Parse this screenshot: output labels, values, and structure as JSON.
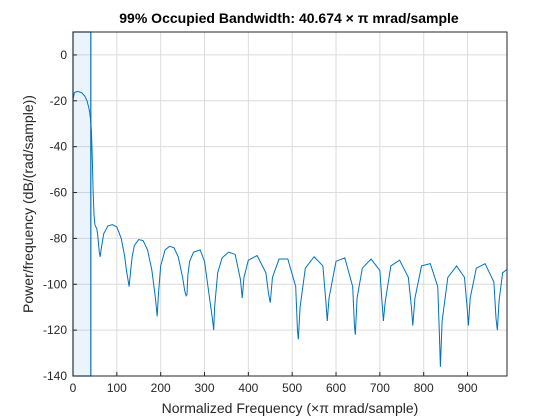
{
  "chart_data": {
    "type": "line",
    "title": "99% Occupied Bandwidth: 40.674 × π mrad/sample",
    "xlabel": "Normalized Frequency  (×π mrad/sample)",
    "ylabel": "Power/frequency (dB/(rad/sample))",
    "xlim": [
      0,
      990
    ],
    "ylim": [
      -140,
      10
    ],
    "xticks": [
      0,
      100,
      200,
      300,
      400,
      500,
      600,
      700,
      800,
      900
    ],
    "yticks": [
      0,
      -20,
      -40,
      -60,
      -80,
      -100,
      -120,
      -140
    ],
    "grid": true,
    "occupied_band": {
      "start": 0,
      "end": 40.674
    },
    "colors": {
      "line": "#0072bd",
      "band_fill": "#0072bd"
    },
    "series": [
      {
        "x": [
          0,
          3,
          8,
          13,
          20,
          27,
          32,
          36,
          38,
          40,
          42,
          44,
          46,
          48,
          50,
          52,
          54,
          56,
          58,
          60,
          62,
          64,
          70,
          80,
          90,
          100,
          110,
          118,
          122,
          128,
          131,
          135,
          140,
          150,
          160,
          170,
          180,
          188,
          192,
          195,
          200,
          210,
          220,
          230,
          240,
          250,
          255,
          258,
          260,
          262,
          266,
          275,
          290,
          300,
          310,
          318,
          321,
          323,
          330,
          340,
          355,
          370,
          382,
          386,
          390,
          400,
          420,
          440,
          446,
          450,
          455,
          470,
          490,
          508,
          512,
          514,
          518,
          530,
          550,
          570,
          577,
          580,
          584,
          600,
          620,
          638,
          642,
          644,
          648,
          660,
          680,
          700,
          705,
          708,
          712,
          725,
          745,
          765,
          772,
          775,
          780,
          795,
          815,
          832,
          836,
          838,
          842,
          855,
          875,
          893,
          899,
          902,
          906,
          920,
          940,
          960,
          965,
          968,
          972,
          980,
          990
        ],
        "y": [
          -19.5,
          -16.5,
          -16,
          -16,
          -16.5,
          -18,
          -20,
          -23,
          -25,
          -28,
          -33,
          -45,
          -60,
          -70,
          -74,
          -75,
          -75.5,
          -78,
          -82,
          -86,
          -88,
          -85,
          -78,
          -74.5,
          -74,
          -75,
          -80,
          -88,
          -94,
          -101,
          -95,
          -88,
          -83,
          -80.5,
          -81,
          -85,
          -94,
          -106,
          -114,
          -104,
          -92,
          -85,
          -83.5,
          -84,
          -88,
          -97,
          -103,
          -105,
          -104.5,
          -96,
          -90,
          -86,
          -85,
          -90,
          -104,
          -115,
          -120,
          -110,
          -95,
          -88.5,
          -86,
          -87,
          -98,
          -106,
          -97,
          -89.5,
          -87.5,
          -95,
          -104,
          -108,
          -97,
          -89,
          -89,
          -101,
          -120,
          -124,
          -110,
          -93,
          -88,
          -92,
          -108,
          -116,
          -106,
          -90,
          -88.5,
          -101,
          -118,
          -122,
          -106,
          -93,
          -89,
          -94,
          -108,
          -116,
          -108,
          -92,
          -89.5,
          -97,
          -110,
          -118,
          -106,
          -92,
          -91,
          -101,
          -123,
          -136,
          -116,
          -97,
          -92,
          -97,
          -110,
          -118,
          -106,
          -93,
          -91,
          -99,
          -115,
          -120,
          -107,
          -95,
          -93.5
        ]
      }
    ]
  }
}
